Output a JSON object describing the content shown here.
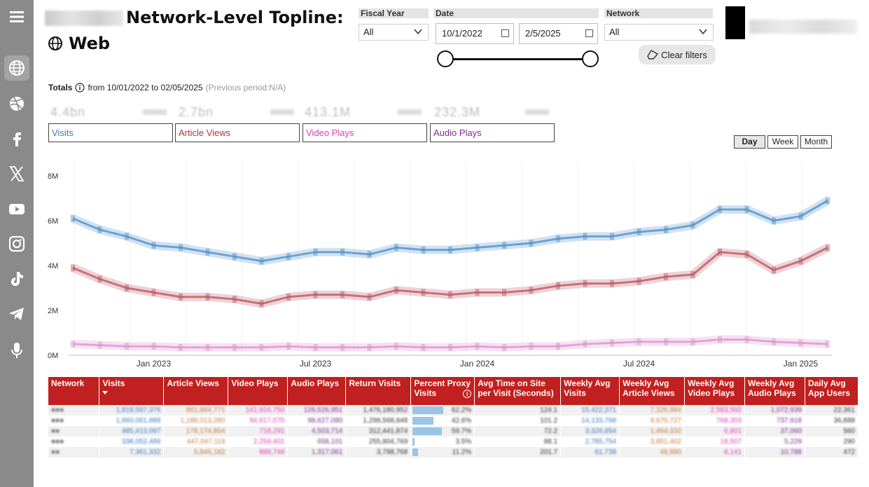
{
  "sidebar": {
    "items": [
      {
        "icon": "menu-icon"
      },
      {
        "icon": "globe-icon"
      },
      {
        "icon": "dribbble-icon"
      },
      {
        "icon": "facebook-icon"
      },
      {
        "icon": "x-icon"
      },
      {
        "icon": "youtube-icon"
      },
      {
        "icon": "instagram-icon"
      },
      {
        "icon": "tiktok-icon"
      },
      {
        "icon": "telegram-icon"
      },
      {
        "icon": "microphone-icon"
      }
    ]
  },
  "header": {
    "title": "Network-Level Topline:",
    "subtitle": "Web"
  },
  "filters": {
    "fiscal_year_label": "Fiscal Year",
    "fiscal_year_value": "All",
    "date_label": "Date",
    "date_start": "10/1/2022",
    "date_end": "2/5/2025",
    "network_label": "Network",
    "network_value": "All",
    "clear_label": "Clear filters"
  },
  "totals": {
    "label": "Totals",
    "range": "from 10/01/2022 to 02/05/2025",
    "previous": "(Previous period:N/A)"
  },
  "kpis": [
    {
      "label": "Visits",
      "color": "#3b78c2",
      "value": "4.4bn"
    },
    {
      "label": "Article Views",
      "color": "#b0343c",
      "value": "2.7bn"
    },
    {
      "label": "Video Plays",
      "color": "#e23ab8",
      "value": "413.1M"
    },
    {
      "label": "Audio Plays",
      "color": "#7b2a8c",
      "value": "232.3M"
    }
  ],
  "period_buttons": [
    {
      "label": "Day",
      "active": true
    },
    {
      "label": "Week",
      "active": false
    },
    {
      "label": "Month",
      "active": false
    }
  ],
  "chart_data": {
    "type": "line",
    "y_ticks": [
      "0M",
      "2M",
      "4M",
      "6M",
      "8M"
    ],
    "ylim": [
      0,
      8.5
    ],
    "x_ticks": [
      "Jan 2023",
      "Jul 2023",
      "Jan 2024",
      "Jul 2024",
      "Jan 2025"
    ],
    "x": [
      "Oct 2022",
      "Nov 2022",
      "Dec 2022",
      "Jan 2023",
      "Feb 2023",
      "Mar 2023",
      "Apr 2023",
      "May 2023",
      "Jun 2023",
      "Jul 2023",
      "Aug 2023",
      "Sep 2023",
      "Oct 2023",
      "Nov 2023",
      "Dec 2023",
      "Jan 2024",
      "Feb 2024",
      "Mar 2024",
      "Apr 2024",
      "May 2024",
      "Jun 2024",
      "Jul 2024",
      "Aug 2024",
      "Sep 2024",
      "Oct 2024",
      "Nov 2024",
      "Dec 2024",
      "Jan 2025",
      "Feb 2025"
    ],
    "series": [
      {
        "color": "#4a8cc8",
        "values": [
          6.1,
          5.6,
          5.3,
          4.9,
          4.8,
          4.6,
          4.4,
          4.2,
          4.4,
          4.6,
          4.6,
          4.5,
          4.8,
          4.7,
          4.7,
          4.8,
          4.9,
          5.0,
          5.2,
          5.3,
          5.3,
          5.5,
          5.6,
          5.8,
          6.5,
          6.5,
          6.0,
          6.2,
          6.9
        ]
      },
      {
        "color": "#b8505a",
        "values": [
          3.9,
          3.4,
          3.0,
          2.8,
          2.6,
          2.6,
          2.5,
          2.3,
          2.6,
          2.7,
          2.7,
          2.6,
          2.9,
          2.8,
          2.7,
          2.8,
          2.8,
          2.9,
          3.1,
          3.2,
          3.2,
          3.3,
          3.5,
          3.6,
          4.6,
          4.5,
          3.8,
          4.2,
          4.8
        ]
      },
      {
        "color": "#d98fcf",
        "values": [
          0.5,
          0.45,
          0.4,
          0.4,
          0.35,
          0.35,
          0.35,
          0.35,
          0.4,
          0.35,
          0.35,
          0.35,
          0.4,
          0.35,
          0.35,
          0.4,
          0.35,
          0.4,
          0.4,
          0.5,
          0.55,
          0.6,
          0.6,
          0.6,
          0.7,
          0.7,
          0.6,
          0.55,
          0.5
        ]
      }
    ]
  },
  "table": {
    "headers": [
      "Network",
      "Visits",
      "Article Views",
      "Video Plays",
      "Audio Plays",
      "Return Visits",
      "Percent Proxy Visits",
      "Avg Time on Site per Visit (Seconds)",
      "Weekly Avg Visits",
      "Weekly Avg Article Views",
      "Weekly Avg Video Plays",
      "Weekly Avg Audio Plays",
      "Daily Avg App Users"
    ],
    "rows": [
      [
        "■■■",
        "1,818,567,376",
        "861,884,771",
        "141,916,750",
        "126,526,951",
        "1,476,180,952",
        "62.2%",
        "124.1",
        "15,422,371",
        "7,326,984",
        "2,583,502",
        "1,072,939",
        "22,361"
      ],
      [
        "■■■",
        "1,660,061,888",
        "1,188,013,280",
        "94,617,070",
        "98,627,080",
        "1,298,568,848",
        "42.6%",
        "101.2",
        "14,133,768",
        "9,670,727",
        "768,303",
        "737,918",
        "36,888"
      ],
      [
        "■■",
        "485,413,097",
        "178,174,864",
        "718,291",
        "4,503,714",
        "312,441,874",
        "59.7%",
        "72.2",
        "3,326,854",
        "1,464,332",
        "6,801",
        "37,060",
        "560"
      ],
      [
        "■■■",
        "338,052,489",
        "447,047,119",
        "2,259,401",
        "658,101",
        "255,804,769",
        "3.5%",
        "88.1",
        "2,785,754",
        "3,851,402",
        "18,507",
        "5,229",
        "290"
      ],
      [
        "■■",
        "7,361,332",
        "5,846,182",
        "888,748",
        "1,317,061",
        "3,798,768",
        "11.2%",
        "201.7",
        "61,738",
        "48,980",
        "8,141",
        "10,788",
        "472"
      ]
    ],
    "proxy_fraction": [
      0.622,
      0.426,
      0.597,
      0.035,
      0.112
    ]
  }
}
